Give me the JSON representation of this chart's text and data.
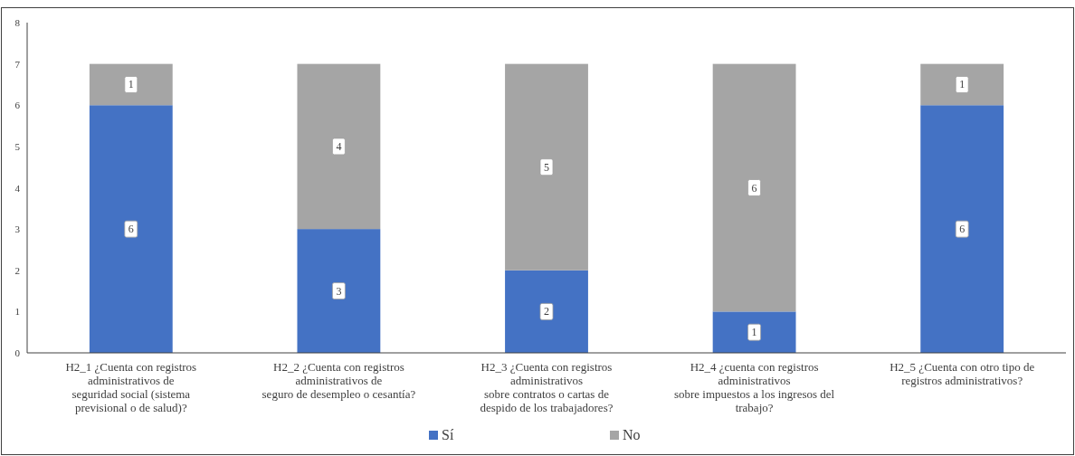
{
  "chart_data": {
    "type": "bar",
    "stacked": true,
    "categories": [
      "H2_1 ¿Cuenta con registros administrativos de\nseguridad social (sistema previsional o de salud)?",
      "H2_2 ¿Cuenta con registros administrativos de\nseguro de desempleo o cesantía?",
      "H2_3 ¿Cuenta con registros administrativos\nsobre contratos o cartas de despido de los trabajadores?",
      "H2_4 ¿cuenta con registros administrativos\nsobre impuestos a los ingresos del trabajo?",
      "H2_5 ¿Cuenta con otro tipo de registros administrativos?"
    ],
    "series": [
      {
        "name": "Sí",
        "color": "#4472c4",
        "values": [
          6,
          3,
          2,
          1,
          6
        ]
      },
      {
        "name": "No",
        "color": "#a5a5a5",
        "values": [
          1,
          4,
          5,
          6,
          1
        ]
      }
    ],
    "ylim": [
      0,
      8
    ],
    "yticks": [
      0,
      1,
      2,
      3,
      4,
      5,
      6,
      7,
      8
    ],
    "grid": false,
    "legend": "bottom",
    "data_labels": true
  }
}
